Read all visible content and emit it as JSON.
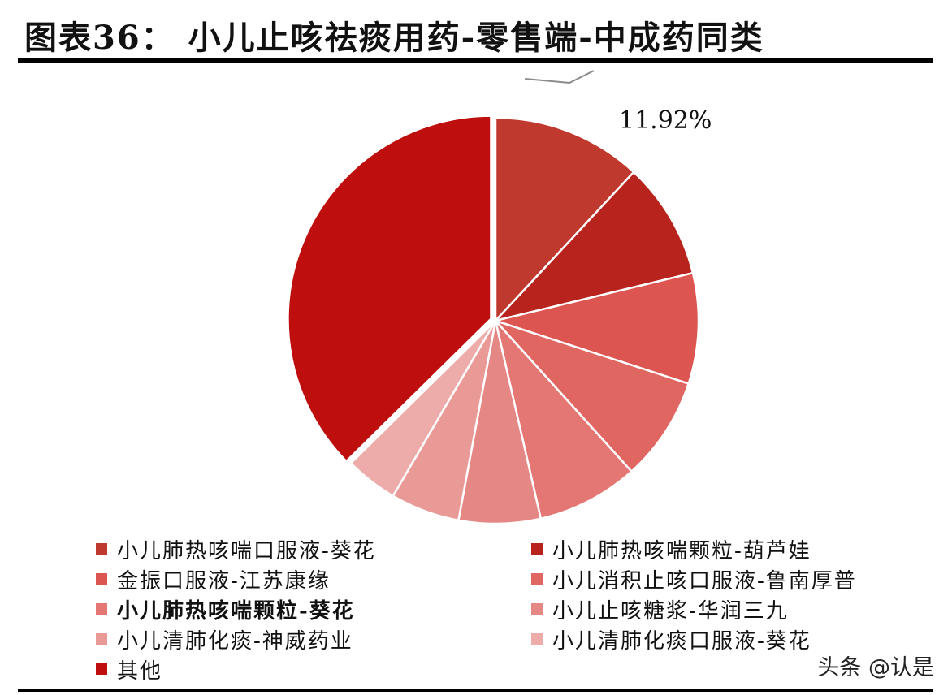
{
  "title": "图表36： 小儿止咳祛痰用药-零售端-中成药同类",
  "watermark": "头条 @认是",
  "chart_data": {
    "type": "pie",
    "title": "图表36： 小儿止咳祛痰用药-零售端-中成药同类",
    "slices": [
      {
        "label": "小儿肺热咳喘口服液-葵花",
        "value": 11.92,
        "color": "#c0392f"
      },
      {
        "label": "小儿肺热咳喘颗粒-葫芦娃",
        "value": 9.3,
        "color": "#b8231d"
      },
      {
        "label": "金振口服液-江苏康缘",
        "value": 8.8,
        "color": "#dd5550"
      },
      {
        "label": "小儿消积止咳口服液-鲁南厚普",
        "value": 8.3,
        "color": "#e06662"
      },
      {
        "label": "小儿肺热咳喘颗粒-葵花",
        "value": 8.1,
        "color": "#e47773"
      },
      {
        "label": "小儿止咳糖浆-华润三九",
        "value": 6.5,
        "color": "#e58885"
      },
      {
        "label": "小儿清肺化痰-神威药业",
        "value": 5.5,
        "color": "#e99a97"
      },
      {
        "label": "小儿清肺化痰口服液-葵花",
        "value": 4.2,
        "color": "#edaba9"
      },
      {
        "label": "其他",
        "value": 37.38,
        "color": "#bf0e0e"
      }
    ],
    "data_labels": [
      {
        "slice": 0,
        "text": "11.92%"
      }
    ],
    "bold_legend_index": 4,
    "legend_placement": "bottom, two columns"
  }
}
